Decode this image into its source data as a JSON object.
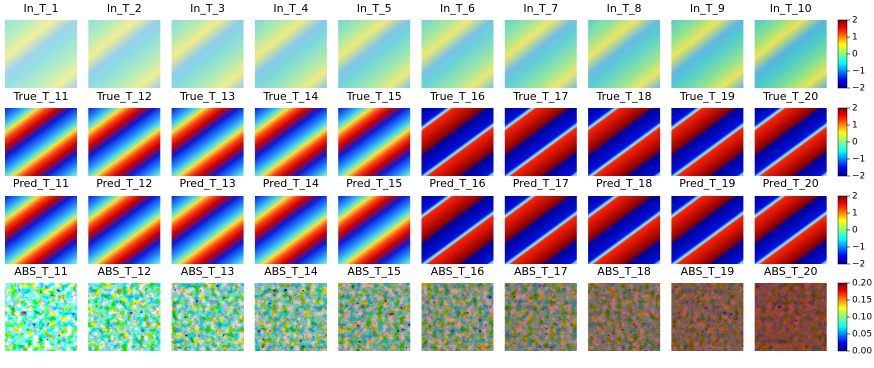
{
  "rows": [
    {
      "titles": [
        "In_T_1",
        "In_T_2",
        "In_T_3",
        "In_T_4",
        "In_T_5",
        "In_T_6",
        "In_T_7",
        "In_T_8",
        "In_T_9",
        "In_T_10"
      ],
      "colorbar_ticks": [
        2,
        1,
        0,
        {
          "value": -1,
          "label": "−1"
        },
        {
          "value": -2,
          "label": "−2"
        }
      ]
    },
    {
      "titles": [
        "True_T_11",
        "True_T_12",
        "True_T_13",
        "True_T_14",
        "True_T_15",
        "True_T_16",
        "True_T_17",
        "True_T_18",
        "True_T_19",
        "True_T_20"
      ],
      "colorbar_ticks": [
        2,
        1,
        0,
        {
          "value": -1,
          "label": "−1"
        },
        {
          "value": -2,
          "label": "−2"
        }
      ]
    },
    {
      "titles": [
        "Pred_T_11",
        "Pred_T_12",
        "Pred_T_13",
        "Pred_T_14",
        "Pred_T_15",
        "Pred_T_16",
        "Pred_T_17",
        "Pred_T_18",
        "Pred_T_19",
        "Pred_T_20"
      ],
      "colorbar_ticks": [
        2,
        1,
        0,
        {
          "value": -1,
          "label": "−1"
        },
        {
          "value": -2,
          "label": "−2"
        }
      ]
    },
    {
      "titles": [
        "ABS_T_11",
        "ABS_T_12",
        "ABS_T_13",
        "ABS_T_14",
        "ABS_T_15",
        "ABS_T_16",
        "ABS_T_17",
        "ABS_T_18",
        "ABS_T_19",
        "ABS_T_20"
      ],
      "colorbar_ticks": [
        {
          "value": 0.2,
          "label": "0.20"
        },
        {
          "value": 0.15,
          "label": "0.15"
        },
        {
          "value": 0.1,
          "label": "0.10"
        },
        {
          "value": 0.05,
          "label": "0.05"
        },
        {
          "value": 0,
          "label": "0.00"
        }
      ]
    }
  ]
}
